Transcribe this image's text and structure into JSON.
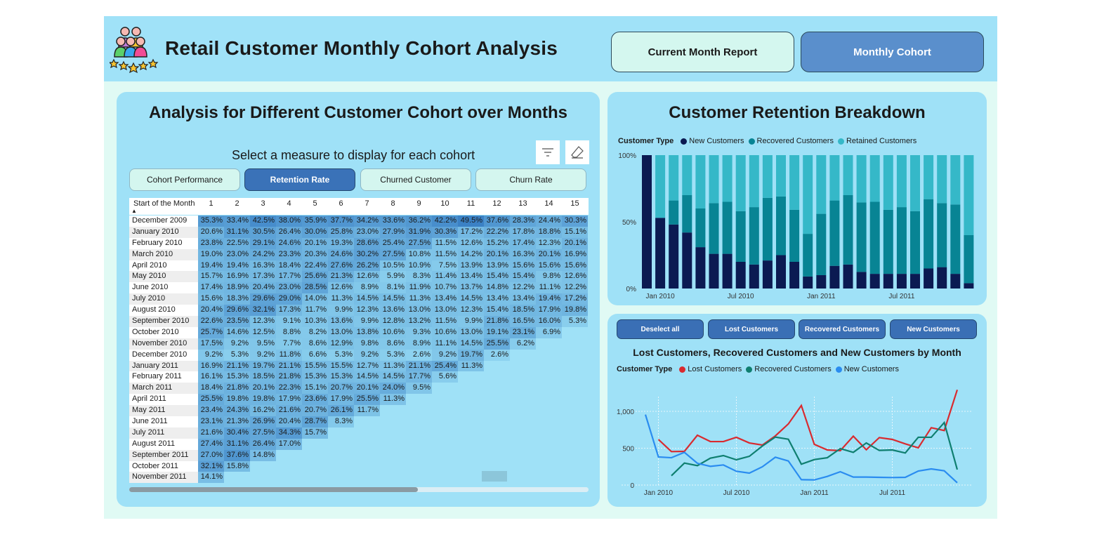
{
  "header": {
    "title": "Retail Customer Monthly Cohort Analysis",
    "nav": [
      {
        "label": "Current Month Report",
        "active": false
      },
      {
        "label": "Monthly Cohort",
        "active": true
      }
    ]
  },
  "cohort_panel": {
    "title": "Analysis for Different Customer Cohort over Months",
    "measure_prompt": "Select a measure to display for each cohort",
    "filter_icon": "filter-lines-icon",
    "clear_icon": "eraser-icon",
    "measures": [
      {
        "label": "Cohort Performance",
        "active": false
      },
      {
        "label": "Retention Rate",
        "active": true
      },
      {
        "label": "Churned Customer",
        "active": false
      },
      {
        "label": "Churn Rate",
        "active": false
      }
    ],
    "table": {
      "row_header": "Start of the Month",
      "sort": "ascending",
      "columns": [
        "1",
        "2",
        "3",
        "4",
        "5",
        "6",
        "7",
        "8",
        "9",
        "10",
        "11",
        "12",
        "13",
        "14",
        "15"
      ],
      "rows": [
        {
          "label": "December 2009",
          "values": [
            "35.3%",
            "33.4%",
            "42.5%",
            "38.0%",
            "35.9%",
            "37.7%",
            "34.2%",
            "33.6%",
            "36.2%",
            "42.2%",
            "49.5%",
            "37.6%",
            "28.3%",
            "24.4%",
            "30.3%"
          ]
        },
        {
          "label": "January 2010",
          "values": [
            "20.6%",
            "31.1%",
            "30.5%",
            "26.4%",
            "30.0%",
            "25.8%",
            "23.0%",
            "27.9%",
            "31.9%",
            "30.3%",
            "17.2%",
            "22.2%",
            "17.8%",
            "18.8%",
            "15.1%"
          ]
        },
        {
          "label": "February 2010",
          "values": [
            "23.8%",
            "22.5%",
            "29.1%",
            "24.6%",
            "20.1%",
            "19.3%",
            "28.6%",
            "25.4%",
            "27.5%",
            "11.5%",
            "12.6%",
            "15.2%",
            "17.4%",
            "12.3%",
            "20.1%"
          ]
        },
        {
          "label": "March 2010",
          "values": [
            "19.0%",
            "23.0%",
            "24.2%",
            "23.3%",
            "20.3%",
            "24.6%",
            "30.2%",
            "27.5%",
            "10.8%",
            "11.5%",
            "14.2%",
            "20.1%",
            "16.3%",
            "20.1%",
            "16.9%"
          ]
        },
        {
          "label": "April 2010",
          "values": [
            "19.4%",
            "19.4%",
            "16.3%",
            "18.4%",
            "22.4%",
            "27.6%",
            "26.2%",
            "10.5%",
            "10.9%",
            "7.5%",
            "13.9%",
            "13.9%",
            "15.6%",
            "15.6%",
            "15.6%"
          ]
        },
        {
          "label": "May 2010",
          "values": [
            "15.7%",
            "16.9%",
            "17.3%",
            "17.7%",
            "25.6%",
            "21.3%",
            "12.6%",
            "5.9%",
            "8.3%",
            "11.4%",
            "13.4%",
            "15.4%",
            "15.4%",
            "9.8%",
            "12.6%"
          ]
        },
        {
          "label": "June 2010",
          "values": [
            "17.4%",
            "18.9%",
            "20.4%",
            "23.0%",
            "28.5%",
            "12.6%",
            "8.9%",
            "8.1%",
            "11.9%",
            "10.7%",
            "13.7%",
            "14.8%",
            "12.2%",
            "11.1%",
            "12.2%"
          ]
        },
        {
          "label": "July 2010",
          "values": [
            "15.6%",
            "18.3%",
            "29.6%",
            "29.0%",
            "14.0%",
            "11.3%",
            "14.5%",
            "14.5%",
            "11.3%",
            "13.4%",
            "14.5%",
            "13.4%",
            "13.4%",
            "19.4%",
            "17.2%"
          ]
        },
        {
          "label": "August 2010",
          "values": [
            "20.4%",
            "29.6%",
            "32.1%",
            "17.3%",
            "11.7%",
            "9.9%",
            "12.3%",
            "13.6%",
            "13.0%",
            "13.0%",
            "12.3%",
            "15.4%",
            "18.5%",
            "17.9%",
            "19.8%"
          ]
        },
        {
          "label": "September 2010",
          "values": [
            "22.6%",
            "23.5%",
            "12.3%",
            "9.1%",
            "10.3%",
            "13.6%",
            "9.9%",
            "12.8%",
            "13.2%",
            "11.5%",
            "9.9%",
            "21.8%",
            "16.5%",
            "16.0%",
            "5.3%"
          ]
        },
        {
          "label": "October 2010",
          "values": [
            "25.7%",
            "14.6%",
            "12.5%",
            "8.8%",
            "8.2%",
            "13.0%",
            "13.8%",
            "10.6%",
            "9.3%",
            "10.6%",
            "13.0%",
            "19.1%",
            "23.1%",
            "6.9%"
          ]
        },
        {
          "label": "November 2010",
          "values": [
            "17.5%",
            "9.2%",
            "9.5%",
            "7.7%",
            "8.6%",
            "12.9%",
            "9.8%",
            "8.6%",
            "8.9%",
            "11.1%",
            "14.5%",
            "25.5%",
            "6.2%"
          ]
        },
        {
          "label": "December 2010",
          "values": [
            "9.2%",
            "5.3%",
            "9.2%",
            "11.8%",
            "6.6%",
            "5.3%",
            "9.2%",
            "5.3%",
            "2.6%",
            "9.2%",
            "19.7%",
            "2.6%"
          ]
        },
        {
          "label": "January 2011",
          "values": [
            "16.9%",
            "21.1%",
            "19.7%",
            "21.1%",
            "15.5%",
            "15.5%",
            "12.7%",
            "11.3%",
            "21.1%",
            "25.4%",
            "11.3%"
          ]
        },
        {
          "label": "February 2011",
          "values": [
            "16.1%",
            "15.3%",
            "18.5%",
            "21.8%",
            "15.3%",
            "15.3%",
            "14.5%",
            "14.5%",
            "17.7%",
            "5.6%"
          ]
        },
        {
          "label": "March 2011",
          "values": [
            "18.4%",
            "21.8%",
            "20.1%",
            "22.3%",
            "15.1%",
            "20.7%",
            "20.1%",
            "24.0%",
            "9.5%"
          ]
        },
        {
          "label": "April 2011",
          "values": [
            "25.5%",
            "19.8%",
            "19.8%",
            "17.9%",
            "23.6%",
            "17.9%",
            "25.5%",
            "11.3%"
          ]
        },
        {
          "label": "May 2011",
          "values": [
            "23.4%",
            "24.3%",
            "16.2%",
            "21.6%",
            "20.7%",
            "26.1%",
            "11.7%"
          ]
        },
        {
          "label": "June 2011",
          "values": [
            "23.1%",
            "21.3%",
            "26.9%",
            "20.4%",
            "28.7%",
            "8.3%"
          ]
        },
        {
          "label": "July 2011",
          "values": [
            "21.6%",
            "30.4%",
            "27.5%",
            "34.3%",
            "15.7%"
          ]
        },
        {
          "label": "August 2011",
          "values": [
            "27.4%",
            "31.1%",
            "26.4%",
            "17.0%"
          ]
        },
        {
          "label": "September 2011",
          "values": [
            "27.0%",
            "37.6%",
            "14.8%"
          ]
        },
        {
          "label": "October 2011",
          "values": [
            "32.1%",
            "15.8%"
          ]
        },
        {
          "label": "November 2011",
          "values": [
            "14.1%"
          ]
        }
      ]
    }
  },
  "retention_panel": {
    "title": "Customer Retention Breakdown"
  },
  "lines_panel": {
    "buttons": [
      "Deselect all",
      "Lost Customers",
      "Recovered Customers",
      "New Customers"
    ],
    "title": "Lost Customers, Recovered Customers and New Customers by Month"
  },
  "chart_data": [
    {
      "type": "bar",
      "stacked": "100%",
      "legend_title": "Customer Type",
      "legend_placement": "top-left",
      "categories": [
        "Dec 2009",
        "Jan 2010",
        "Feb 2010",
        "Mar 2010",
        "Apr 2010",
        "May 2010",
        "Jun 2010",
        "Jul 2010",
        "Aug 2010",
        "Sep 2010",
        "Oct 2010",
        "Nov 2010",
        "Dec 2010",
        "Jan 2011",
        "Feb 2011",
        "Mar 2011",
        "Apr 2011",
        "May 2011",
        "Jun 2011",
        "Jul 2011",
        "Aug 2011",
        "Sep 2011",
        "Oct 2011",
        "Nov 2011",
        "Dec 2011"
      ],
      "x_tick_labels": [
        "Jan 2010",
        "Jul 2010",
        "Jan 2011",
        "Jul 2011"
      ],
      "y_tick_labels": [
        "0%",
        "50%",
        "100%"
      ],
      "ylim": [
        0,
        100
      ],
      "series": [
        {
          "name": "New Customers",
          "color": "#0b1a52",
          "values": [
            100,
            53,
            48,
            42,
            31,
            26,
            26,
            20,
            18,
            21,
            25,
            20,
            9,
            10,
            17,
            18,
            12.5,
            11,
            11,
            11,
            11,
            15,
            16,
            11,
            4
          ]
        },
        {
          "name": "Recovered Customers",
          "color": "#088494",
          "values": [
            0,
            0,
            18,
            28,
            29,
            38,
            39,
            38,
            43,
            47,
            44,
            39,
            32,
            46,
            49,
            52,
            52,
            54,
            48,
            50,
            47,
            52,
            48,
            52,
            36
          ]
        },
        {
          "name": "Retained Customers",
          "color": "#35b8c8",
          "values": [
            0,
            47,
            34,
            30,
            40,
            36,
            35,
            42,
            39,
            32,
            31,
            41,
            59,
            44,
            34,
            30,
            35.5,
            35,
            41,
            39,
            42,
            33,
            36,
            37,
            60
          ]
        }
      ]
    },
    {
      "type": "line",
      "legend_title": "Customer Type",
      "legend_placement": "top-left",
      "grid": true,
      "x": [
        "Dec 2009",
        "Jan 2010",
        "Feb 2010",
        "Mar 2010",
        "Apr 2010",
        "May 2010",
        "Jun 2010",
        "Jul 2010",
        "Aug 2010",
        "Sep 2010",
        "Oct 2010",
        "Nov 2010",
        "Dec 2010",
        "Jan 2011",
        "Feb 2011",
        "Mar 2011",
        "Apr 2011",
        "May 2011",
        "Jun 2011",
        "Jul 2011",
        "Aug 2011",
        "Sep 2011",
        "Oct 2011",
        "Nov 2011",
        "Dec 2011"
      ],
      "x_tick_labels": [
        "Jan 2010",
        "Jul 2010",
        "Jan 2011",
        "Jul 2011"
      ],
      "y_tick_labels": [
        "0",
        "500",
        "1,000"
      ],
      "ylim": [
        0,
        1350
      ],
      "series": [
        {
          "name": "Lost Customers",
          "color": "#d92a2f",
          "values": [
            null,
            619,
            454,
            457,
            676,
            590,
            590,
            648,
            571,
            543,
            667,
            829,
            1079,
            552,
            476,
            467,
            663,
            479,
            644,
            619,
            559,
            505,
            778,
            740,
            1292
          ]
        },
        {
          "name": "Recovered Customers",
          "color": "#0f7f70",
          "values": [
            null,
            null,
            127,
            298,
            263,
            365,
            400,
            343,
            390,
            530,
            651,
            622,
            283,
            346,
            371,
            495,
            444,
            571,
            470,
            476,
            435,
            648,
            648,
            848,
            210
          ]
        },
        {
          "name": "New Customers",
          "color": "#2a8cf0",
          "values": [
            956,
            381,
            371,
            444,
            295,
            254,
            273,
            187,
            162,
            248,
            378,
            327,
            73,
            70,
            117,
            181,
            108,
            108,
            105,
            102,
            105,
            190,
            219,
            194,
            32
          ]
        }
      ]
    }
  ]
}
